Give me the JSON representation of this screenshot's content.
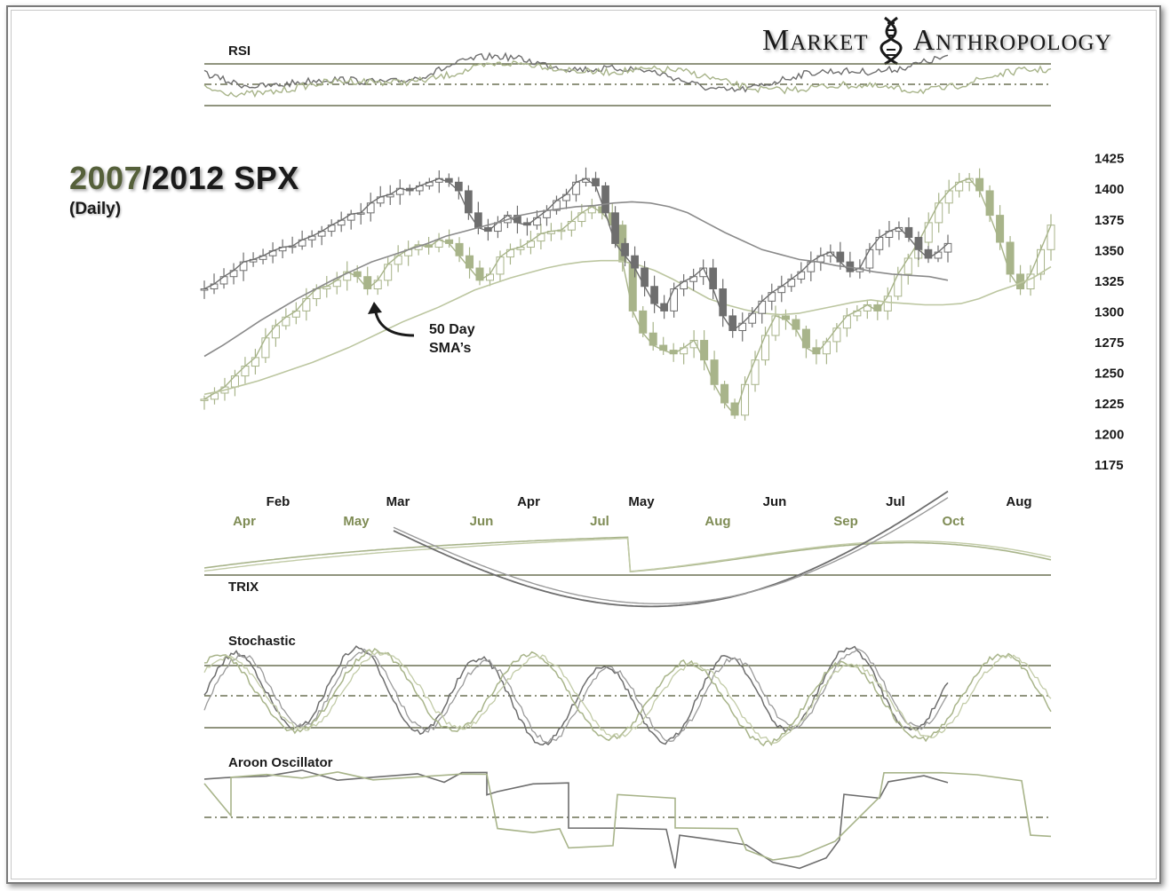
{
  "brand": {
    "word1": "Market",
    "word2": "Anthropology",
    "logo_mark": "dna-helix-icon"
  },
  "title": {
    "year1": "2007",
    "separator": "/",
    "rest": "2012  SPX",
    "subtitle": "(Daily)"
  },
  "annotation": {
    "line1": "50 Day",
    "line2": "SMA’s"
  },
  "colors": {
    "series_2012": "#6e6e6e",
    "series_2007": "#a8b48a",
    "reference_lines": "#4d5530",
    "label_2007": "#7f8c55"
  },
  "chart_data": {
    "type": "line",
    "title": "2007/2012  SPX",
    "subtitle": "(Daily)",
    "price_axis": {
      "ticks": [
        1425,
        1400,
        1375,
        1350,
        1325,
        1300,
        1275,
        1250,
        1225,
        1200,
        1175
      ],
      "ylim": [
        1170,
        1432
      ]
    },
    "months_2012": [
      "Feb",
      "Mar",
      "Apr",
      "May",
      "Jun",
      "Jul",
      "Aug"
    ],
    "months_2007": [
      "Apr",
      "May",
      "Jun",
      "Jul",
      "Aug",
      "Sep",
      "Oct"
    ],
    "series": [
      {
        "price": [
          1318,
          1322,
          1328,
          1333,
          1340,
          1342,
          1345,
          1349,
          1352,
          1353,
          1358,
          1361,
          1365,
          1370,
          1374,
          1379,
          1380,
          1388,
          1393,
          1395,
          1400,
          1398,
          1402,
          1405,
          1408,
          1405,
          1398,
          1380,
          1368,
          1365,
          1372,
          1378,
          1372,
          1370,
          1376,
          1382,
          1390,
          1395,
          1405,
          1408,
          1402,
          1380,
          1355,
          1345,
          1335,
          1320,
          1306,
          1300,
          1318,
          1324,
          1328,
          1335,
          1318,
          1296,
          1284,
          1290,
          1298,
          1308,
          1315,
          1320,
          1326,
          1332,
          1340,
          1345,
          1348,
          1340,
          1332,
          1335,
          1350,
          1360,
          1365,
          1368,
          1360,
          1350,
          1343,
          1348,
          1355
        ],
        "sma50": [
          1263,
          1272,
          1282,
          1292,
          1301,
          1310,
          1318,
          1326,
          1333,
          1340,
          1345,
          1350,
          1355,
          1361,
          1365,
          1369,
          1373,
          1378,
          1381,
          1383,
          1385,
          1386,
          1388,
          1389,
          1388,
          1385,
          1380,
          1372,
          1364,
          1357,
          1350,
          1346,
          1342,
          1340,
          1337,
          1335,
          1332,
          1330,
          1329,
          1328,
          1325
        ]
      },
      {
        "price": [
          1228,
          1233,
          1238,
          1247,
          1255,
          1262,
          1278,
          1288,
          1295,
          1300,
          1310,
          1318,
          1320,
          1325,
          1332,
          1328,
          1318,
          1325,
          1338,
          1345,
          1350,
          1354,
          1352,
          1358,
          1355,
          1345,
          1335,
          1325,
          1330,
          1344,
          1350,
          1352,
          1357,
          1363,
          1365,
          1366,
          1373,
          1380,
          1385,
          1380,
          1370,
          1340,
          1300,
          1282,
          1272,
          1268,
          1265,
          1270,
          1276,
          1260,
          1240,
          1225,
          1215,
          1240,
          1260,
          1280,
          1296,
          1293,
          1285,
          1270,
          1265,
          1275,
          1286,
          1296,
          1300,
          1305,
          1300,
          1312,
          1330,
          1343,
          1356,
          1372,
          1388,
          1398,
          1405,
          1408,
          1398,
          1378,
          1356,
          1330,
          1318,
          1330,
          1350,
          1370
        ],
        "sma50": [
          1232,
          1235,
          1239,
          1243,
          1248,
          1253,
          1258,
          1264,
          1270,
          1277,
          1284,
          1291,
          1297,
          1303,
          1310,
          1317,
          1322,
          1327,
          1331,
          1335,
          1338,
          1340,
          1341,
          1341,
          1338,
          1333,
          1326,
          1318,
          1310,
          1305,
          1301,
          1298,
          1297,
          1298,
          1301,
          1304,
          1307,
          1309,
          1307,
          1306,
          1305,
          1305,
          1306,
          1310,
          1316,
          1321,
          1327,
          1336
        ]
      }
    ],
    "indicators": [
      "RSI",
      "TRIX",
      "Stochastic",
      "Aroon Oscillator"
    ]
  },
  "arrow_icon": "curved-arrow-icon"
}
